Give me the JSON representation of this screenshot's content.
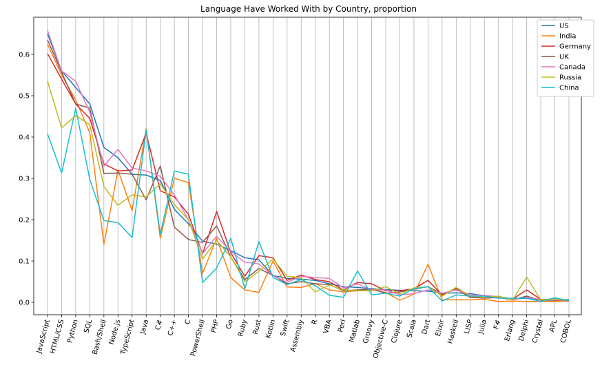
{
  "chart_data": {
    "type": "line",
    "title": "Language Have Worked With by Country, proportion",
    "xlabel": "",
    "ylabel": "",
    "ylim": [
      -0.03,
      0.69
    ],
    "yticks": [
      0.0,
      0.1,
      0.2,
      0.3,
      0.4,
      0.5,
      0.6
    ],
    "ytick_labels": [
      "0.0",
      "0.1",
      "0.2",
      "0.3",
      "0.4",
      "0.5",
      "0.6"
    ],
    "grid": "vertical",
    "legend": "top-right",
    "categories": [
      "JavaScript",
      "HTML/CSS",
      "Python",
      "SQL",
      "Bash/Shell",
      "Node.js",
      "TypeScript",
      "Java",
      "C#",
      "C++",
      "C",
      "PowerShell",
      "PHP",
      "Go",
      "Ruby",
      "Rust",
      "Kotlin",
      "Swift",
      "Assembly",
      "R",
      "VBA",
      "Perl",
      "Matlab",
      "Groovy",
      "Objective-C",
      "Clojure",
      "Scala",
      "Dart",
      "Elixir",
      "Haskell",
      "LISP",
      "Julia",
      "F#",
      "Erlang",
      "Delphi",
      "Crystal",
      "APL",
      "COBOL"
    ],
    "series": [
      {
        "name": "US",
        "color": "#1f77b4",
        "values": [
          0.65,
          0.56,
          0.52,
          0.48,
          0.375,
          0.35,
          0.31,
          0.308,
          0.295,
          0.225,
          0.19,
          0.148,
          0.141,
          0.125,
          0.108,
          0.103,
          0.065,
          0.058,
          0.056,
          0.053,
          0.045,
          0.038,
          0.036,
          0.033,
          0.031,
          0.029,
          0.028,
          0.027,
          0.022,
          0.023,
          0.021,
          0.016,
          0.014,
          0.008,
          0.01,
          0.006,
          0.008,
          0.006
        ]
      },
      {
        "name": "India",
        "color": "#ff7f0e",
        "values": [
          0.625,
          0.55,
          0.49,
          0.41,
          0.14,
          0.32,
          0.222,
          0.42,
          0.155,
          0.3,
          0.29,
          0.07,
          0.155,
          0.06,
          0.03,
          0.024,
          0.1,
          0.037,
          0.036,
          0.045,
          0.03,
          0.025,
          0.028,
          0.03,
          0.024,
          0.005,
          0.02,
          0.092,
          0.006,
          0.006,
          0.006,
          0.007,
          0.002,
          0.003,
          0.002,
          0.002,
          0.002,
          0.003
        ]
      },
      {
        "name": "Germany",
        "color": "#d62728",
        "values": [
          0.602,
          0.54,
          0.48,
          0.445,
          0.335,
          0.318,
          0.32,
          0.41,
          0.27,
          0.255,
          0.213,
          0.117,
          0.22,
          0.12,
          0.063,
          0.113,
          0.108,
          0.053,
          0.066,
          0.055,
          0.05,
          0.03,
          0.048,
          0.045,
          0.028,
          0.028,
          0.033,
          0.053,
          0.018,
          0.034,
          0.013,
          0.011,
          0.011,
          0.008,
          0.03,
          0.007,
          0.005,
          0.005
        ]
      },
      {
        "name": "UK",
        "color": "#8c564b",
        "values": [
          0.635,
          0.557,
          0.48,
          0.47,
          0.312,
          0.313,
          0.31,
          0.248,
          0.33,
          0.182,
          0.152,
          0.145,
          0.185,
          0.11,
          0.055,
          0.082,
          0.065,
          0.045,
          0.05,
          0.045,
          0.043,
          0.028,
          0.03,
          0.032,
          0.022,
          0.025,
          0.032,
          0.038,
          0.02,
          0.032,
          0.012,
          0.01,
          0.012,
          0.006,
          0.015,
          0.005,
          0.005,
          0.004
        ]
      },
      {
        "name": "Canada",
        "color": "#e377c2",
        "values": [
          0.658,
          0.56,
          0.535,
          0.46,
          0.33,
          0.37,
          0.325,
          0.318,
          0.305,
          0.26,
          0.2,
          0.118,
          0.16,
          0.123,
          0.097,
          0.093,
          0.065,
          0.048,
          0.063,
          0.06,
          0.058,
          0.035,
          0.045,
          0.03,
          0.03,
          0.018,
          0.021,
          0.03,
          0.022,
          0.03,
          0.018,
          0.017,
          0.013,
          0.008,
          0.012,
          0.007,
          0.006,
          0.004
        ]
      },
      {
        "name": "Russia",
        "color": "#bcbd22",
        "values": [
          0.535,
          0.422,
          0.452,
          0.43,
          0.28,
          0.235,
          0.26,
          0.255,
          0.287,
          0.237,
          0.2,
          0.105,
          0.15,
          0.11,
          0.05,
          0.075,
          0.105,
          0.063,
          0.06,
          0.025,
          0.042,
          0.03,
          0.028,
          0.028,
          0.038,
          0.02,
          0.035,
          0.038,
          0.015,
          0.036,
          0.015,
          0.012,
          0.015,
          0.006,
          0.061,
          0.006,
          0.008,
          0.004
        ]
      },
      {
        "name": "China",
        "color": "#17becf",
        "values": [
          0.408,
          0.313,
          0.47,
          0.297,
          0.198,
          0.193,
          0.157,
          0.417,
          0.165,
          0.318,
          0.31,
          0.048,
          0.083,
          0.155,
          0.033,
          0.147,
          0.06,
          0.043,
          0.055,
          0.04,
          0.017,
          0.012,
          0.076,
          0.018,
          0.022,
          0.015,
          0.033,
          0.038,
          0.003,
          0.018,
          0.015,
          0.015,
          0.01,
          0.01,
          0.01,
          0.002,
          0.011,
          0.004
        ]
      }
    ]
  }
}
